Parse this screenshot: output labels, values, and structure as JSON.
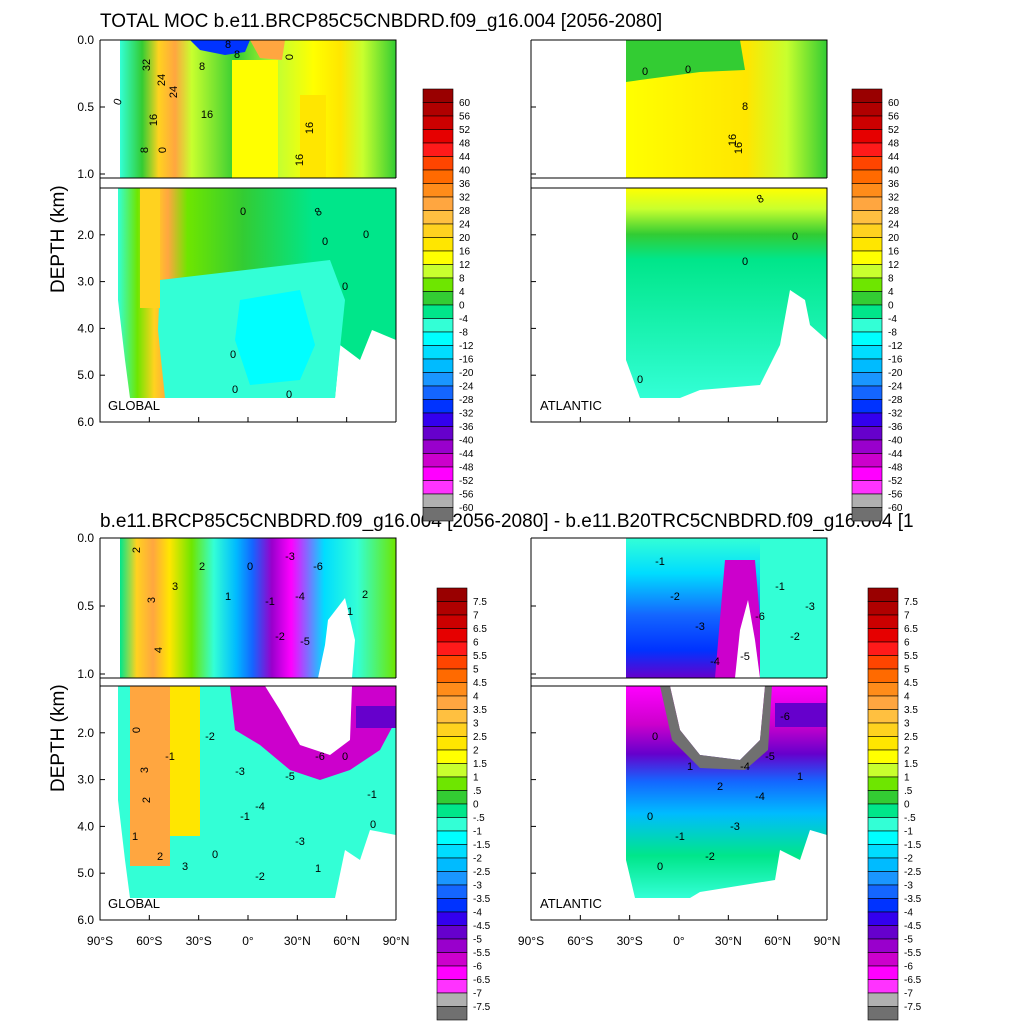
{
  "chart_data": {
    "type": "contour",
    "titles": {
      "top": "TOTAL MOC b.e11.BRCP85C5CNBDRD.f09_g16.004 [2056-2080]",
      "bottom": "b.e11.BRCP85C5CNBDRD.f09_g16.004 [2056-2080] - b.e11.B20TRC5CNBDRD.f09_g16.004 [1"
    },
    "ylabel": "DEPTH (km)",
    "y_ticks_upper": [
      "0.0",
      "0.5",
      "1.0"
    ],
    "y_ticks_lower": [
      "2.0",
      "3.0",
      "4.0",
      "5.0",
      "6.0"
    ],
    "x_ticks": [
      "90°S",
      "60°S",
      "30°S",
      "0°",
      "30°N",
      "60°N",
      "90°N"
    ],
    "region_labels": [
      "GLOBAL",
      "ATLANTIC"
    ],
    "colorbar_top": [
      "60",
      "56",
      "52",
      "48",
      "44",
      "40",
      "36",
      "32",
      "28",
      "24",
      "20",
      "16",
      "12",
      "8",
      "4",
      "0",
      "-4",
      "-8",
      "-12",
      "-16",
      "-20",
      "-24",
      "-28",
      "-32",
      "-36",
      "-40",
      "-44",
      "-48",
      "-52",
      "-56",
      "-60"
    ],
    "colorbar_bottom": [
      "7.5",
      "7",
      "6.5",
      "6",
      "5.5",
      "5",
      "4.5",
      "4",
      "3.5",
      "3",
      "2.5",
      "2",
      "1.5",
      "1",
      ".5",
      "0",
      "-.5",
      "-1",
      "-1.5",
      "-2",
      "-2.5",
      "-3",
      "-3.5",
      "-4",
      "-4.5",
      "-5",
      "-5.5",
      "-6",
      "-6.5",
      "-7",
      "-7.5"
    ],
    "palette": [
      "#990000",
      "#b00000",
      "#cc0000",
      "#e60000",
      "#ff1a1a",
      "#ff4500",
      "#ff6a00",
      "#ff8c1a",
      "#ffa640",
      "#ffc040",
      "#ffd21f",
      "#ffe600",
      "#ffff00",
      "#c8ff2e",
      "#6ee600",
      "#33cc33",
      "#00e68a",
      "#33ffd6",
      "#00ffff",
      "#00ddff",
      "#00bbff",
      "#1a96ff",
      "#1466ff",
      "#0033ff",
      "#3300ee",
      "#6600cc",
      "#9900cc",
      "#cc00cc",
      "#ff00ff",
      "#ff33ff",
      "#b0b0b0",
      "#707070"
    ],
    "contour_labels_top_global": [
      "0",
      "8",
      "16",
      "24",
      "32",
      "8",
      "16",
      "24",
      "0",
      "8",
      "16",
      "0",
      "8",
      "16",
      "8",
      "0",
      "0",
      "0",
      "0",
      "0",
      "0",
      "0"
    ],
    "contour_labels_top_atlantic": [
      "0",
      "8",
      "16",
      "0",
      "8",
      "16",
      "0",
      "0",
      "0"
    ],
    "contour_labels_bottom_global": [
      "2",
      "3",
      "4",
      "3",
      "2",
      "1",
      "0",
      "-1",
      "-2",
      "-3",
      "-4",
      "-5",
      "-6",
      "1",
      "2",
      "0",
      "-1",
      "-2",
      "-3",
      "-4",
      "-5",
      "-6",
      "0",
      "1",
      "2",
      "3",
      "0",
      "-1",
      "-2",
      "-3",
      "2",
      "3",
      "-1",
      "0",
      "1"
    ],
    "contour_labels_bottom_atlantic": [
      "-1",
      "-2",
      "-3",
      "-4",
      "-5",
      "-6",
      "-1",
      "-2",
      "-3",
      "0",
      "1",
      "2",
      "-4",
      "-5",
      "-6",
      "0",
      "-1",
      "-2",
      "-3",
      "-4",
      "0",
      "1"
    ]
  }
}
